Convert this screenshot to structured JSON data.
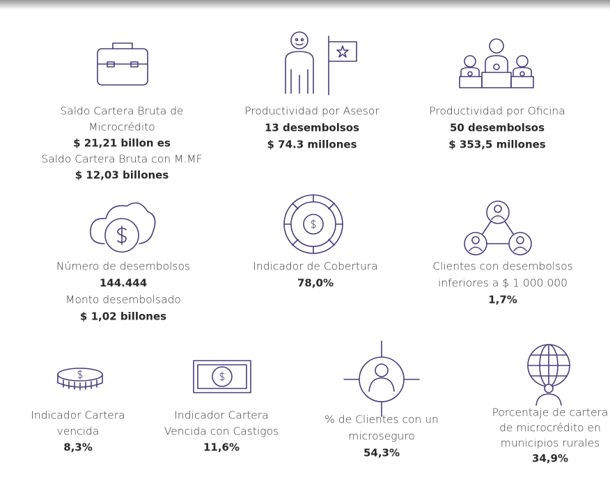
{
  "items": [
    {
      "lines": [
        {
          "text": "Saldo Cartera Bruta de",
          "bold": false
        },
        {
          "text": "Microcrédito",
          "bold": false
        },
        {
          "text": "$ 21,21 billon es",
          "bold": true
        },
        {
          "text": "Saldo Cartera Bruta con M.MF",
          "bold": false
        },
        {
          "text": "$ 12,03 billones",
          "bold": true
        }
      ]
    },
    {
      "lines": [
        {
          "text": "Productividad por Asesor",
          "bold": false
        },
        {
          "text": "13 desembolsos",
          "bold": true
        },
        {
          "text": "$ 74.3 millones",
          "bold": true
        }
      ]
    },
    {
      "lines": [
        {
          "text": "Productividad por Oficina",
          "bold": false
        },
        {
          "text": "50 desembolsos",
          "bold": true
        },
        {
          "text": "$ 353,5 millones",
          "bold": true
        }
      ]
    },
    {
      "lines": [
        {
          "text": "Número de desembolsos",
          "bold": false
        },
        {
          "text": "144.444",
          "bold": true
        },
        {
          "text": "Monto desembolsado",
          "bold": false
        },
        {
          "text": "$ 1,02 billones",
          "bold": true
        }
      ]
    },
    {
      "lines": [
        {
          "text": "Indicador de Cobertura",
          "bold": false
        },
        {
          "text": "78,0%",
          "bold": true
        }
      ]
    },
    {
      "lines": [
        {
          "text": "Clientes con desembolsos",
          "bold": false
        },
        {
          "text": "inferiores a $ 1.000.000",
          "bold": false
        },
        {
          "text": "1,7%",
          "bold": true
        }
      ]
    },
    {
      "lines": [
        {
          "text": "Indicador Cartera",
          "bold": false
        },
        {
          "text": "vencida",
          "bold": false
        },
        {
          "text": "8,3%",
          "bold": true
        }
      ]
    },
    {
      "lines": [
        {
          "text": "Indicador Cartera",
          "bold": false
        },
        {
          "text": "Vencida con Castigos",
          "bold": false
        },
        {
          "text": "11,6%",
          "bold": true
        }
      ]
    },
    {
      "lines": [
        {
          "text": "% de Clientes con un",
          "bold": false
        },
        {
          "text": "microseguro",
          "bold": false
        },
        {
          "text": "54,3%",
          "bold": true
        }
      ]
    },
    {
      "lines": [
        {
          "text": "Porcentaje de cartera",
          "bold": false
        },
        {
          "text": "de microcrédito en",
          "bold": false
        },
        {
          "text": "municipios rurales",
          "bold": false
        },
        {
          "text": "34,9%",
          "bold": true
        }
      ]
    }
  ]
}
